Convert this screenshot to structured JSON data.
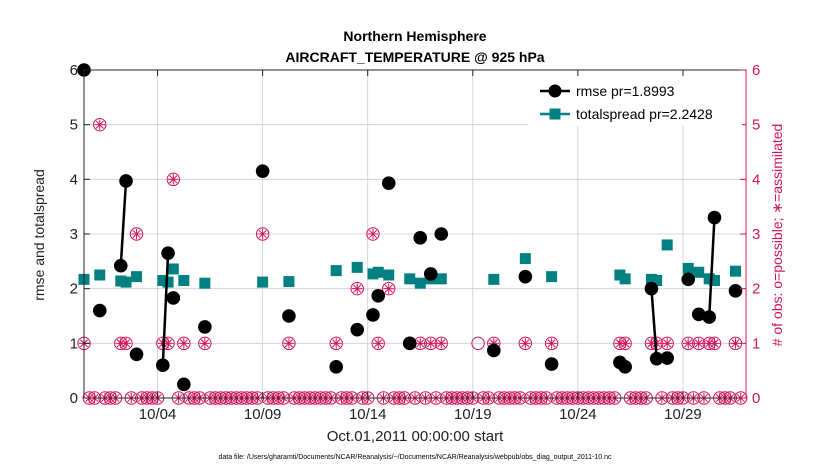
{
  "chart_data": {
    "type": "scatter",
    "title": "Northern Hemisphere",
    "subtitle": "AIRCRAFT_TEMPERATURE @ 925 hPa",
    "xlabel": "Oct.01,2011 00:00:00 start",
    "ylabel": "rmse and totalspread",
    "ylabel_right": "# of obs: o=possible; ∗=assimilated",
    "footnote": "data file: /Users/gharamti/Documents/NCAR/Reanalysis/~/Documents/NCAR/Reanalysis/webpub/obs_diag_output_2011-10.nc",
    "xlim": [
      0,
      31.5
    ],
    "ylim": [
      0,
      6
    ],
    "ylim_right": [
      0,
      6
    ],
    "x_ticks": [
      {
        "value": 3.5,
        "label": "10/04"
      },
      {
        "value": 8.5,
        "label": "10/09"
      },
      {
        "value": 13.5,
        "label": "10/14"
      },
      {
        "value": 18.5,
        "label": "10/19"
      },
      {
        "value": 23.5,
        "label": "10/24"
      },
      {
        "value": 28.5,
        "label": "10/29"
      }
    ],
    "y_ticks": [
      "0",
      "1",
      "2",
      "3",
      "4",
      "5",
      "6"
    ],
    "y_ticks_right": [
      "0",
      "1",
      "2",
      "3",
      "4",
      "5",
      "6"
    ],
    "grid": true,
    "legend_position": "top-right",
    "colors": {
      "rmse": "#000000",
      "totalspread": "#008080",
      "obs": "#d4145a",
      "grid": "#ccccdd"
    },
    "series": [
      {
        "name": "rmse pr=1.8993",
        "points": [
          [
            0.0,
            6.0
          ],
          [
            0.75,
            1.6
          ],
          [
            1.75,
            2.42
          ],
          [
            2.0,
            3.97
          ],
          [
            2.5,
            0.8
          ],
          [
            3.75,
            0.6
          ],
          [
            4.0,
            2.65
          ],
          [
            4.25,
            1.83
          ],
          [
            4.75,
            0.25
          ],
          [
            5.75,
            1.3
          ],
          [
            8.5,
            4.15
          ],
          [
            9.75,
            1.5
          ],
          [
            12.0,
            0.57
          ],
          [
            13.0,
            1.25
          ],
          [
            13.75,
            1.52
          ],
          [
            14.0,
            1.87
          ],
          [
            14.5,
            3.93
          ],
          [
            15.5,
            1.0
          ],
          [
            16.0,
            2.93
          ],
          [
            16.5,
            2.27
          ],
          [
            17.0,
            3.0
          ],
          [
            19.5,
            0.87
          ],
          [
            21.0,
            2.22
          ],
          [
            22.25,
            0.62
          ],
          [
            25.5,
            0.65
          ],
          [
            25.75,
            0.57
          ],
          [
            27.0,
            2.0
          ],
          [
            27.25,
            0.72
          ],
          [
            27.75,
            0.73
          ],
          [
            28.75,
            2.17
          ],
          [
            29.25,
            1.53
          ],
          [
            29.75,
            1.48
          ],
          [
            30.0,
            3.3
          ],
          [
            31.0,
            1.96
          ]
        ],
        "segments": [
          [
            1.75,
            2.0
          ],
          [
            3.75,
            4.0
          ],
          [
            27.0,
            27.25
          ],
          [
            29.75,
            30.0
          ]
        ]
      },
      {
        "name": "totalspread pr=2.2428",
        "points": [
          [
            0.0,
            2.17
          ],
          [
            0.75,
            2.25
          ],
          [
            1.75,
            2.14
          ],
          [
            2.0,
            2.12
          ],
          [
            2.5,
            2.22
          ],
          [
            3.75,
            2.15
          ],
          [
            4.0,
            2.12
          ],
          [
            4.25,
            2.36
          ],
          [
            4.75,
            2.15
          ],
          [
            5.75,
            2.1
          ],
          [
            8.5,
            2.12
          ],
          [
            9.75,
            2.13
          ],
          [
            12.0,
            2.33
          ],
          [
            13.0,
            2.39
          ],
          [
            13.75,
            2.27
          ],
          [
            14.0,
            2.3
          ],
          [
            14.5,
            2.25
          ],
          [
            15.5,
            2.18
          ],
          [
            16.0,
            2.1
          ],
          [
            16.5,
            2.18
          ],
          [
            17.0,
            2.18
          ],
          [
            19.5,
            2.17
          ],
          [
            21.0,
            2.55
          ],
          [
            22.25,
            2.22
          ],
          [
            25.5,
            2.25
          ],
          [
            25.75,
            2.18
          ],
          [
            27.0,
            2.17
          ],
          [
            27.25,
            2.15
          ],
          [
            27.75,
            2.8
          ],
          [
            28.75,
            2.37
          ],
          [
            29.25,
            2.3
          ],
          [
            29.75,
            2.18
          ],
          [
            30.0,
            2.15
          ],
          [
            31.0,
            2.32
          ]
        ],
        "segments": [
          [
            1.75,
            2.0
          ],
          [
            3.75,
            4.0
          ],
          [
            27.0,
            27.25
          ],
          [
            29.75,
            30.0
          ]
        ]
      },
      {
        "name": "obs possible",
        "marker": "circle",
        "x": [
          0.0,
          0.75,
          1.75,
          2.0,
          2.5,
          3.75,
          4.0,
          4.25,
          4.75,
          5.75,
          8.5,
          9.75,
          12.0,
          13.0,
          13.75,
          14.0,
          14.5,
          15.5,
          16.0,
          16.5,
          17.0,
          18.75,
          19.5,
          21.0,
          22.25,
          25.5,
          25.75,
          27.0,
          27.25,
          27.75,
          28.75,
          29.25,
          29.75,
          30.0,
          31.0
        ],
        "values": [
          1,
          5,
          1,
          1,
          3,
          1,
          1,
          4,
          1,
          1,
          3,
          1,
          1,
          2,
          3,
          1,
          2,
          1,
          1,
          1,
          1,
          1,
          1,
          1,
          1,
          1,
          1,
          1,
          1,
          1,
          1,
          1,
          1,
          1,
          1
        ]
      },
      {
        "name": "obs assimilated",
        "marker": "star",
        "x": [
          0.0,
          0.75,
          1.75,
          2.0,
          2.5,
          3.75,
          4.0,
          4.25,
          4.75,
          5.75,
          8.5,
          9.75,
          12.0,
          13.0,
          13.75,
          14.0,
          14.5,
          15.5,
          16.0,
          16.5,
          17.0,
          19.5,
          21.0,
          22.25,
          25.5,
          25.75,
          27.0,
          27.25,
          27.75,
          28.75,
          29.25,
          29.75,
          30.0,
          31.0
        ],
        "values": [
          1,
          5,
          1,
          1,
          3,
          1,
          1,
          4,
          1,
          1,
          3,
          1,
          1,
          2,
          3,
          1,
          2,
          1,
          1,
          1,
          1,
          1,
          1,
          1,
          1,
          1,
          1,
          1,
          1,
          1,
          1,
          1,
          1,
          1
        ]
      },
      {
        "name": "obs zero",
        "marker": "circle-star",
        "x_start": 0.25,
        "x_end": 31.25,
        "step": 0.25,
        "value": 0
      }
    ]
  }
}
